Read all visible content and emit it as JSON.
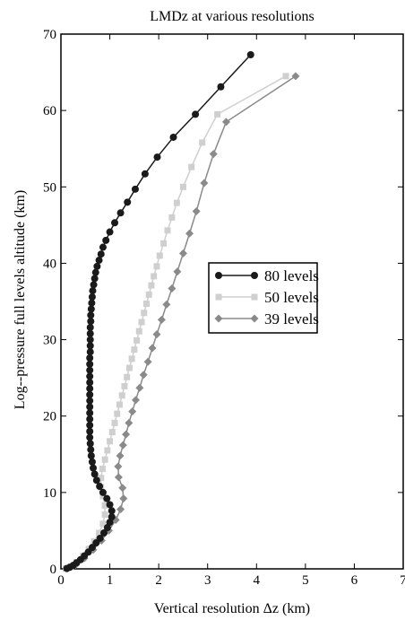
{
  "chart_data": {
    "type": "line",
    "title": "LMDz at various resolutions",
    "xlabel": "Vertical resolution Δz (km)",
    "ylabel": "Log--pressure full levels altitude (km)",
    "xlim": [
      0,
      7
    ],
    "ylim": [
      0,
      70
    ],
    "xticks": [
      0,
      1,
      2,
      3,
      4,
      5,
      6,
      7
    ],
    "yticks": [
      0,
      10,
      20,
      30,
      40,
      50,
      60,
      70
    ],
    "grid": false,
    "legend_position": "center-right",
    "series": [
      {
        "name": "80 levels",
        "color": "#1a1a1a",
        "marker": "circle",
        "points": [
          [
            0.12,
            0.05
          ],
          [
            0.18,
            0.2
          ],
          [
            0.25,
            0.45
          ],
          [
            0.32,
            0.8
          ],
          [
            0.4,
            1.2
          ],
          [
            0.48,
            1.7
          ],
          [
            0.56,
            2.2
          ],
          [
            0.64,
            2.8
          ],
          [
            0.72,
            3.4
          ],
          [
            0.8,
            4.0
          ],
          [
            0.88,
            4.7
          ],
          [
            0.95,
            5.4
          ],
          [
            1.0,
            6.1
          ],
          [
            1.04,
            6.8
          ],
          [
            1.04,
            7.6
          ],
          [
            1.0,
            8.4
          ],
          [
            0.94,
            9.2
          ],
          [
            0.86,
            10.0
          ],
          [
            0.79,
            10.8
          ],
          [
            0.73,
            11.6
          ],
          [
            0.69,
            12.4
          ],
          [
            0.66,
            13.2
          ],
          [
            0.64,
            14.0
          ],
          [
            0.62,
            14.8
          ],
          [
            0.61,
            15.6
          ],
          [
            0.6,
            16.4
          ],
          [
            0.59,
            17.2
          ],
          [
            0.59,
            18.0
          ],
          [
            0.59,
            18.8
          ],
          [
            0.59,
            19.6
          ],
          [
            0.59,
            20.4
          ],
          [
            0.59,
            21.2
          ],
          [
            0.59,
            22.0
          ],
          [
            0.59,
            22.8
          ],
          [
            0.59,
            23.6
          ],
          [
            0.59,
            24.4
          ],
          [
            0.59,
            25.2
          ],
          [
            0.59,
            26.0
          ],
          [
            0.59,
            26.8
          ],
          [
            0.59,
            27.6
          ],
          [
            0.6,
            28.4
          ],
          [
            0.6,
            29.2
          ],
          [
            0.6,
            30.0
          ],
          [
            0.6,
            30.8
          ],
          [
            0.6,
            31.6
          ],
          [
            0.61,
            32.4
          ],
          [
            0.61,
            33.2
          ],
          [
            0.62,
            34.0
          ],
          [
            0.63,
            34.8
          ],
          [
            0.64,
            35.6
          ],
          [
            0.65,
            36.4
          ],
          [
            0.67,
            37.2
          ],
          [
            0.69,
            38.0
          ],
          [
            0.71,
            38.8
          ],
          [
            0.74,
            39.6
          ],
          [
            0.78,
            40.4
          ],
          [
            0.82,
            41.2
          ],
          [
            0.86,
            42.1
          ],
          [
            0.92,
            43.0
          ],
          [
            1.0,
            44.1
          ],
          [
            1.1,
            45.3
          ],
          [
            1.22,
            46.6
          ],
          [
            1.36,
            48.0
          ],
          [
            1.52,
            49.7
          ],
          [
            1.72,
            51.7
          ],
          [
            1.97,
            53.9
          ],
          [
            2.3,
            56.5
          ],
          [
            2.75,
            59.5
          ],
          [
            3.27,
            63.1
          ],
          [
            3.88,
            67.3
          ]
        ]
      },
      {
        "name": "50 levels",
        "color": "#cfcfcf",
        "marker": "square",
        "points": [
          [
            0.1,
            0.05
          ],
          [
            0.2,
            0.3
          ],
          [
            0.32,
            0.9
          ],
          [
            0.45,
            1.7
          ],
          [
            0.57,
            2.6
          ],
          [
            0.68,
            3.6
          ],
          [
            0.78,
            4.7
          ],
          [
            0.86,
            5.9
          ],
          [
            0.9,
            7.1
          ],
          [
            0.9,
            8.3
          ],
          [
            0.86,
            9.5
          ],
          [
            0.82,
            10.7
          ],
          [
            0.82,
            11.9
          ],
          [
            0.85,
            13.1
          ],
          [
            0.9,
            14.3
          ],
          [
            0.95,
            15.5
          ],
          [
            1.0,
            16.7
          ],
          [
            1.05,
            17.9
          ],
          [
            1.1,
            19.1
          ],
          [
            1.15,
            20.3
          ],
          [
            1.2,
            21.5
          ],
          [
            1.25,
            22.7
          ],
          [
            1.3,
            23.9
          ],
          [
            1.35,
            25.1
          ],
          [
            1.4,
            26.3
          ],
          [
            1.45,
            27.5
          ],
          [
            1.5,
            28.7
          ],
          [
            1.55,
            29.9
          ],
          [
            1.6,
            31.1
          ],
          [
            1.65,
            32.3
          ],
          [
            1.7,
            33.5
          ],
          [
            1.75,
            34.7
          ],
          [
            1.8,
            35.9
          ],
          [
            1.85,
            37.1
          ],
          [
            1.9,
            38.3
          ],
          [
            1.96,
            39.6
          ],
          [
            2.02,
            41.0
          ],
          [
            2.1,
            42.6
          ],
          [
            2.18,
            44.3
          ],
          [
            2.27,
            46.0
          ],
          [
            2.37,
            47.9
          ],
          [
            2.5,
            50.0
          ],
          [
            2.67,
            52.6
          ],
          [
            2.89,
            55.8
          ],
          [
            3.2,
            59.5
          ],
          [
            4.6,
            64.5
          ]
        ]
      },
      {
        "name": "39 levels",
        "color": "#8a8a8a",
        "marker": "diamond",
        "points": [
          [
            0.13,
            0.05
          ],
          [
            0.3,
            0.5
          ],
          [
            0.48,
            1.4
          ],
          [
            0.66,
            2.5
          ],
          [
            0.83,
            3.7
          ],
          [
            0.98,
            5.0
          ],
          [
            1.12,
            6.4
          ],
          [
            1.22,
            7.8
          ],
          [
            1.28,
            9.2
          ],
          [
            1.26,
            10.6
          ],
          [
            1.18,
            12.0
          ],
          [
            1.17,
            13.4
          ],
          [
            1.21,
            14.8
          ],
          [
            1.27,
            16.2
          ],
          [
            1.33,
            17.6
          ],
          [
            1.39,
            19.1
          ],
          [
            1.46,
            20.6
          ],
          [
            1.53,
            22.1
          ],
          [
            1.61,
            23.7
          ],
          [
            1.69,
            25.4
          ],
          [
            1.78,
            27.1
          ],
          [
            1.87,
            28.9
          ],
          [
            1.96,
            30.7
          ],
          [
            2.06,
            32.6
          ],
          [
            2.16,
            34.6
          ],
          [
            2.27,
            36.7
          ],
          [
            2.38,
            38.9
          ],
          [
            2.5,
            41.3
          ],
          [
            2.63,
            43.9
          ],
          [
            2.77,
            46.8
          ],
          [
            2.93,
            50.5
          ],
          [
            3.12,
            54.3
          ],
          [
            3.38,
            58.5
          ],
          [
            4.8,
            64.5
          ]
        ]
      }
    ]
  }
}
